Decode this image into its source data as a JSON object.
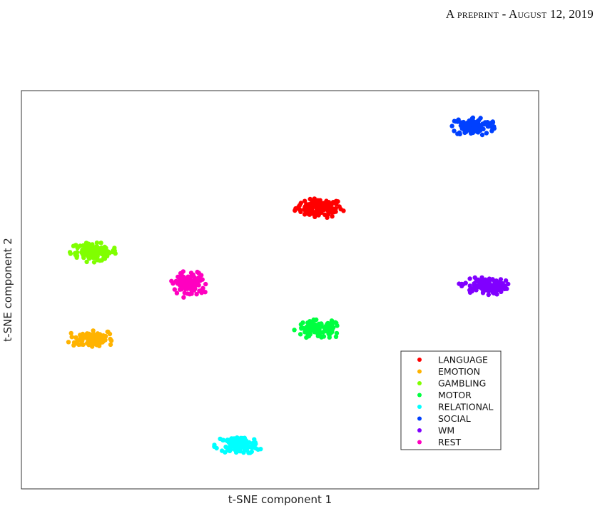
{
  "header": {
    "running_head": "A preprint - August 12, 2019"
  },
  "chart_data": {
    "type": "scatter",
    "title": "",
    "xlabel": "t-SNE component 1",
    "ylabel": "t-SNE component 2",
    "xlim": [
      0,
      100
    ],
    "ylim": [
      0,
      100
    ],
    "grid": false,
    "ticks": false,
    "legend_position": "lower-right",
    "series": [
      {
        "name": "LANGUAGE",
        "color": "#ff0000",
        "center": [
          57.5,
          70.5
        ],
        "spread": [
          5.0,
          2.6
        ],
        "n": 110
      },
      {
        "name": "EMOTION",
        "color": "#ffb300",
        "center": [
          13.5,
          37.7
        ],
        "spread": [
          4.8,
          2.6
        ],
        "n": 110
      },
      {
        "name": "GAMBLING",
        "color": "#80ff00",
        "center": [
          14.0,
          59.5
        ],
        "spread": [
          5.0,
          2.6
        ],
        "n": 110
      },
      {
        "name": "MOTOR",
        "color": "#00ff40",
        "center": [
          57.5,
          40.0
        ],
        "spread": [
          5.0,
          2.6
        ],
        "n": 110
      },
      {
        "name": "RELATIONAL",
        "color": "#00ffff",
        "center": [
          42.0,
          11.0
        ],
        "spread": [
          5.0,
          2.4
        ],
        "n": 110
      },
      {
        "name": "SOCIAL",
        "color": "#0040ff",
        "center": [
          87.5,
          91.0
        ],
        "spread": [
          5.0,
          2.6
        ],
        "n": 110
      },
      {
        "name": "WM",
        "color": "#8000ff",
        "center": [
          89.5,
          51.0
        ],
        "spread": [
          5.0,
          2.6
        ],
        "n": 110
      },
      {
        "name": "REST",
        "color": "#ff00c0",
        "center": [
          32.5,
          51.5
        ],
        "spread": [
          4.0,
          3.6
        ],
        "n": 110
      }
    ]
  }
}
